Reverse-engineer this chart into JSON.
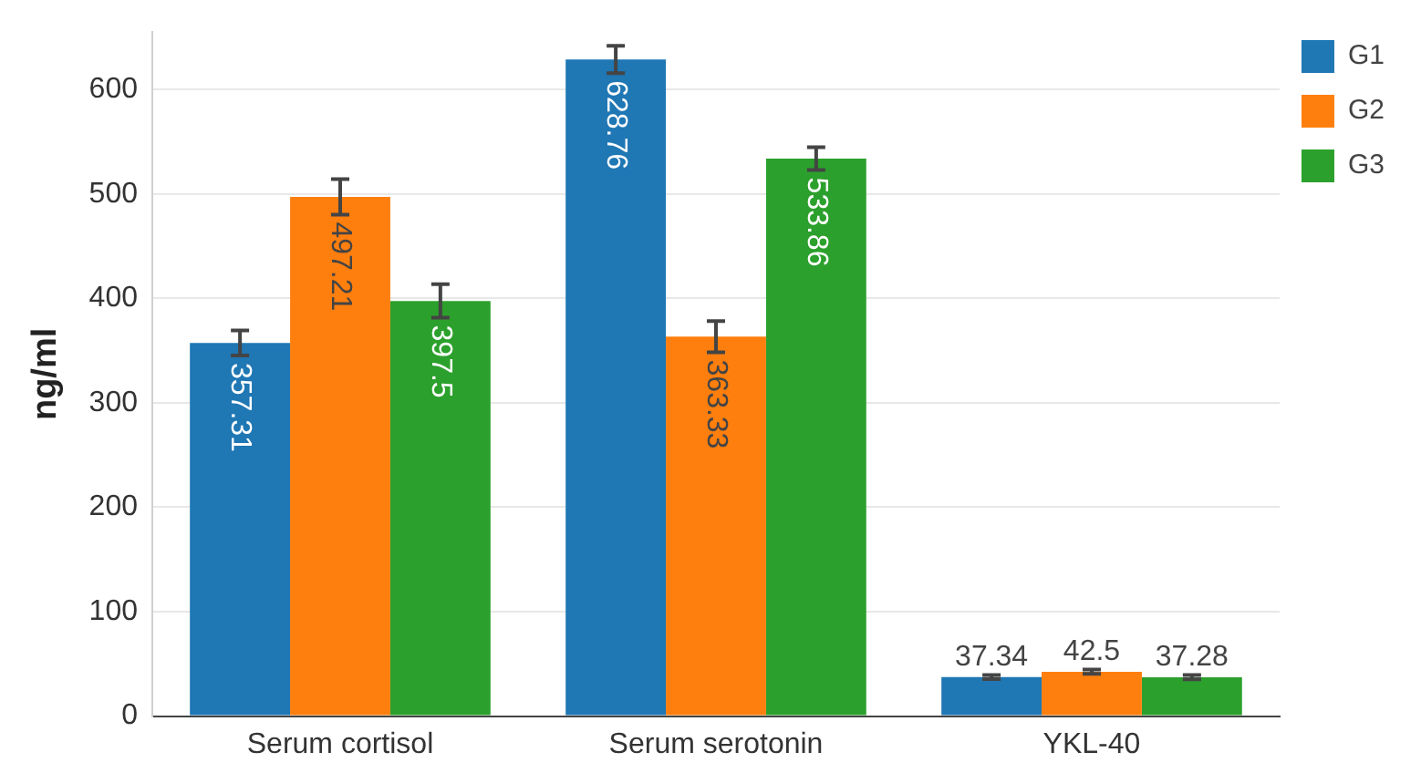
{
  "chart_data": {
    "type": "bar",
    "ylabel": "ng/ml",
    "categories": [
      "Serum cortisol",
      "Serum serotonin",
      "YKL-40"
    ],
    "series": [
      {
        "name": "G1",
        "color": "#1f77b4",
        "values": [
          357.31,
          628.76,
          37.34
        ],
        "errors": [
          12,
          13,
          2
        ]
      },
      {
        "name": "G2",
        "color": "#ff7f0e",
        "values": [
          497.21,
          363.33,
          42.5
        ],
        "errors": [
          17,
          15,
          2
        ]
      },
      {
        "name": "G3",
        "color": "#2ca02c",
        "values": [
          397.5,
          533.86,
          37.28
        ],
        "errors": [
          16,
          11,
          2
        ]
      }
    ],
    "ylim": [
      0,
      655
    ],
    "yticks": [
      0,
      100,
      200,
      300,
      400,
      500,
      600
    ],
    "grid": "y",
    "legend": "top right",
    "data_labels": true
  }
}
